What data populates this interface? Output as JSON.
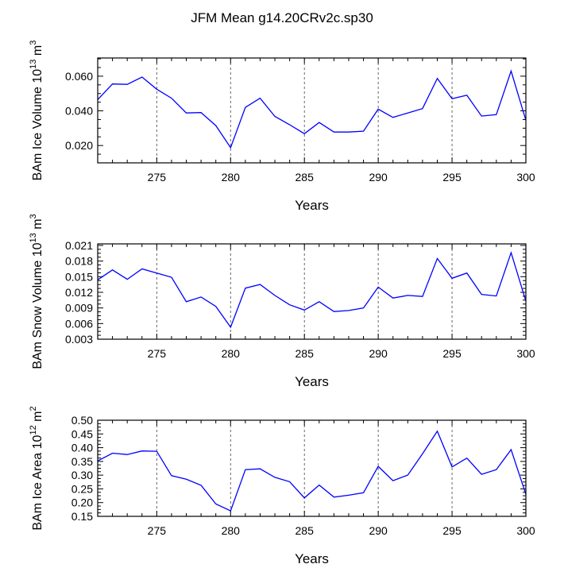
{
  "title": "JFM Mean g14.20CRv2c.sp30",
  "line_color": "#0000ff",
  "chart_data": [
    {
      "type": "line",
      "ylabel_prefix": "BAm Ice Volume 10",
      "ylabel_exp": "13",
      "ylabel_unit": " m",
      "ylabel_unit_exp": "3",
      "xlabel": "Years",
      "xlim": [
        271,
        300
      ],
      "ylim": [
        0.01,
        0.0705
      ],
      "xticks": [
        275,
        280,
        285,
        290,
        295,
        300
      ],
      "xtick_labels": [
        "275",
        "280",
        "285",
        "290",
        "295",
        "300"
      ],
      "yticks": [
        0.02,
        0.04,
        0.06
      ],
      "ytick_labels": [
        "0.020",
        "0.040",
        "0.060"
      ],
      "x": [
        271,
        272,
        273,
        274,
        275,
        276,
        277,
        278,
        279,
        280,
        281,
        282,
        283,
        284,
        285,
        286,
        287,
        288,
        289,
        290,
        291,
        292,
        293,
        294,
        295,
        296,
        297,
        298,
        299,
        300
      ],
      "values": [
        0.0465,
        0.0555,
        0.0553,
        0.0595,
        0.0525,
        0.0473,
        0.0388,
        0.039,
        0.0315,
        0.0188,
        0.042,
        0.0473,
        0.0368,
        0.032,
        0.0268,
        0.0333,
        0.0278,
        0.0278,
        0.0283,
        0.041,
        0.0362,
        0.0388,
        0.0413,
        0.0587,
        0.047,
        0.049,
        0.037,
        0.0378,
        0.063,
        0.0345
      ]
    },
    {
      "type": "line",
      "ylabel_prefix": "BAm Snow Volume 10",
      "ylabel_exp": "13",
      "ylabel_unit": " m",
      "ylabel_unit_exp": "3",
      "xlabel": "Years",
      "xlim": [
        271,
        300
      ],
      "ylim": [
        0.003,
        0.0213
      ],
      "xticks": [
        275,
        280,
        285,
        290,
        295,
        300
      ],
      "xtick_labels": [
        "275",
        "280",
        "285",
        "290",
        "295",
        "300"
      ],
      "yticks": [
        0.003,
        0.006,
        0.009,
        0.012,
        0.015,
        0.018,
        0.021
      ],
      "ytick_labels": [
        "0.003",
        "0.006",
        "0.009",
        "0.012",
        "0.015",
        "0.018",
        "0.021"
      ],
      "x": [
        271,
        272,
        273,
        274,
        275,
        276,
        277,
        278,
        279,
        280,
        281,
        282,
        283,
        284,
        285,
        286,
        287,
        288,
        289,
        290,
        291,
        292,
        293,
        294,
        295,
        296,
        297,
        298,
        299,
        300
      ],
      "values": [
        0.0144,
        0.0163,
        0.0145,
        0.0165,
        0.0157,
        0.0149,
        0.0102,
        0.0111,
        0.0093,
        0.0053,
        0.0128,
        0.0135,
        0.0114,
        0.0096,
        0.0086,
        0.0102,
        0.0083,
        0.0085,
        0.009,
        0.013,
        0.0109,
        0.0114,
        0.0112,
        0.0185,
        0.0147,
        0.0157,
        0.0116,
        0.0113,
        0.0196,
        0.0103
      ]
    },
    {
      "type": "line",
      "ylabel_prefix": "BAm Ice Area 10",
      "ylabel_exp": "12",
      "ylabel_unit": " m",
      "ylabel_unit_exp": "2",
      "xlabel": "Years",
      "xlim": [
        271,
        300
      ],
      "ylim": [
        0.15,
        0.5
      ],
      "xticks": [
        275,
        280,
        285,
        290,
        295,
        300
      ],
      "xtick_labels": [
        "275",
        "280",
        "285",
        "290",
        "295",
        "300"
      ],
      "yticks": [
        0.15,
        0.2,
        0.25,
        0.3,
        0.35,
        0.4,
        0.45,
        0.5
      ],
      "ytick_labels": [
        "0.15",
        "0.20",
        "0.25",
        "0.30",
        "0.35",
        "0.40",
        "0.45",
        "0.50"
      ],
      "x": [
        271,
        272,
        273,
        274,
        275,
        276,
        277,
        278,
        279,
        280,
        281,
        282,
        283,
        284,
        285,
        286,
        287,
        288,
        289,
        290,
        291,
        292,
        293,
        294,
        295,
        296,
        297,
        298,
        299,
        300
      ],
      "values": [
        0.352,
        0.38,
        0.375,
        0.388,
        0.387,
        0.298,
        0.285,
        0.263,
        0.195,
        0.17,
        0.32,
        0.323,
        0.292,
        0.276,
        0.217,
        0.264,
        0.22,
        0.227,
        0.236,
        0.332,
        0.28,
        0.3,
        0.378,
        0.46,
        0.33,
        0.362,
        0.303,
        0.32,
        0.393,
        0.23
      ]
    }
  ]
}
